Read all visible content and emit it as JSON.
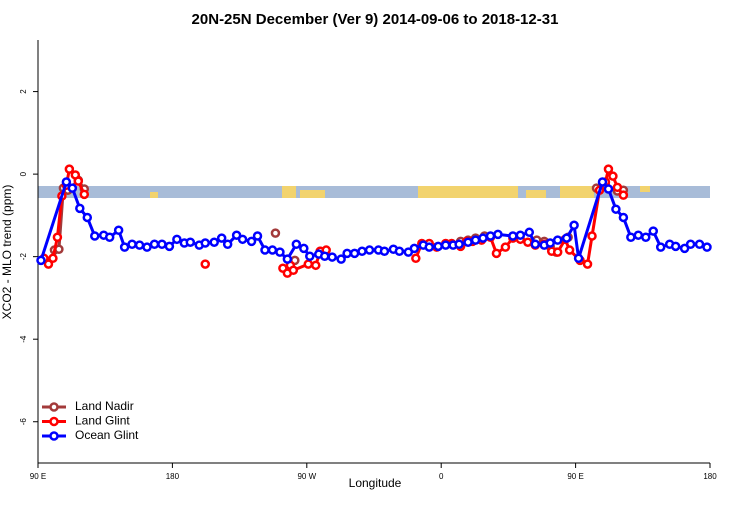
{
  "chart_data": {
    "type": "line",
    "title": "20N-25N December (Ver 9)   2014-09-06 to 2018-12-31",
    "x_label": "Longitude",
    "y_label": "XCO2 - MLO trend (ppm)",
    "xlim": [
      90,
      540
    ],
    "ylim": [
      -7,
      3.25
    ],
    "xticks": [
      {
        "value": 90,
        "label": "90 E"
      },
      {
        "value": 180,
        "label": "180"
      },
      {
        "value": 270,
        "label": "90 W"
      },
      {
        "value": 360,
        "label": "0"
      },
      {
        "value": 450,
        "label": "90 E"
      },
      {
        "value": 540,
        "label": "180"
      }
    ],
    "yticks": [
      2,
      0,
      -2,
      -4,
      -6
    ],
    "legend": "bottom-left",
    "series": [
      {
        "name": "Land Nadir",
        "color": "#a33a3a",
        "x": [
          101,
          104,
          107,
          110,
          117,
          121,
          null,
          249,
          null,
          262,
          null,
          279,
          null,
          373,
          378,
          383,
          389,
          null,
          424,
          429,
          433,
          437,
          null,
          445,
          null,
          464,
          470,
          478,
          482
        ],
        "values": [
          -1.84,
          -1.82,
          -0.34,
          -0.39,
          -0.15,
          -0.36,
          null,
          -1.43,
          null,
          -2.09,
          null,
          -1.87,
          null,
          -1.63,
          -1.6,
          -1.55,
          -1.5,
          null,
          -1.6,
          -1.63,
          -1.75,
          -1.89,
          null,
          -1.53,
          null,
          -0.34,
          -0.27,
          -0.41,
          -0.39
        ]
      },
      {
        "name": "Land Glint",
        "color": "#ff0000",
        "x": [
          94,
          97,
          100,
          103,
          106,
          109,
          111,
          115,
          117,
          121,
          null,
          202,
          null,
          254,
          257,
          259,
          261,
          271,
          276,
          279,
          283,
          null,
          343,
          347,
          352,
          357,
          363,
          367,
          373,
          377,
          381,
          387,
          393,
          397,
          403,
          408,
          413,
          418,
          423,
          429,
          434,
          438,
          443,
          446,
          453,
          458,
          461,
          466,
          470,
          472,
          475,
          478,
          482
        ],
        "values": [
          -2.04,
          -2.18,
          -2.04,
          -1.53,
          -0.53,
          -0.27,
          0.12,
          -0.02,
          -0.17,
          -0.49,
          null,
          -2.18,
          null,
          -2.28,
          -2.4,
          -2.21,
          -2.33,
          -2.18,
          -2.21,
          -1.87,
          -1.84,
          null,
          -2.04,
          -1.68,
          -1.68,
          -1.77,
          -1.68,
          -1.68,
          -1.75,
          -1.63,
          -1.63,
          -1.6,
          -1.53,
          -1.92,
          -1.77,
          -1.55,
          -1.58,
          -1.65,
          -1.72,
          -1.7,
          -1.87,
          -1.89,
          -1.58,
          -1.84,
          -2.09,
          -2.18,
          -1.5,
          -0.39,
          -0.19,
          0.12,
          -0.05,
          -0.32,
          -0.51
        ]
      },
      {
        "name": "Ocean Glint",
        "color": "#0000ff",
        "x": [
          92,
          109,
          113,
          118,
          123,
          128,
          134,
          138,
          144,
          148,
          153,
          158,
          163,
          168,
          173,
          178,
          183,
          188,
          192,
          198,
          202,
          208,
          213,
          217,
          223,
          227,
          233,
          237,
          242,
          247,
          252,
          257,
          263,
          268,
          272,
          278,
          282,
          287,
          293,
          297,
          302,
          307,
          312,
          318,
          322,
          328,
          332,
          338,
          342,
          348,
          352,
          358,
          363,
          368,
          372,
          378,
          383,
          388,
          393,
          398,
          408,
          413,
          419,
          423,
          429,
          433,
          438,
          444,
          449,
          452,
          468,
          472,
          477,
          482,
          487,
          492,
          497,
          502,
          507,
          513,
          517,
          523,
          527,
          533,
          538
        ],
        "values": [
          -2.09,
          -0.19,
          -0.34,
          -0.83,
          -1.05,
          -1.5,
          -1.48,
          -1.53,
          -1.36,
          -1.77,
          -1.7,
          -1.72,
          -1.77,
          -1.7,
          -1.7,
          -1.75,
          -1.58,
          -1.67,
          -1.65,
          -1.72,
          -1.67,
          -1.65,
          -1.55,
          -1.7,
          -1.48,
          -1.58,
          -1.63,
          -1.5,
          -1.84,
          -1.84,
          -1.89,
          -2.06,
          -1.7,
          -1.8,
          -1.99,
          -1.94,
          -1.99,
          -2.01,
          -2.06,
          -1.92,
          -1.92,
          -1.87,
          -1.84,
          -1.84,
          -1.87,
          -1.82,
          -1.87,
          -1.89,
          -1.8,
          -1.72,
          -1.77,
          -1.75,
          -1.72,
          -1.72,
          -1.7,
          -1.65,
          -1.6,
          -1.55,
          -1.5,
          -1.46,
          -1.5,
          -1.48,
          -1.41,
          -1.7,
          -1.72,
          -1.67,
          -1.6,
          -1.55,
          -1.24,
          -2.04,
          -0.19,
          -0.36,
          -0.85,
          -1.05,
          -1.53,
          -1.48,
          -1.53,
          -1.38,
          -1.77,
          -1.7,
          -1.75,
          -1.8,
          -1.7,
          -1.7,
          -1.77
        ]
      }
    ]
  }
}
